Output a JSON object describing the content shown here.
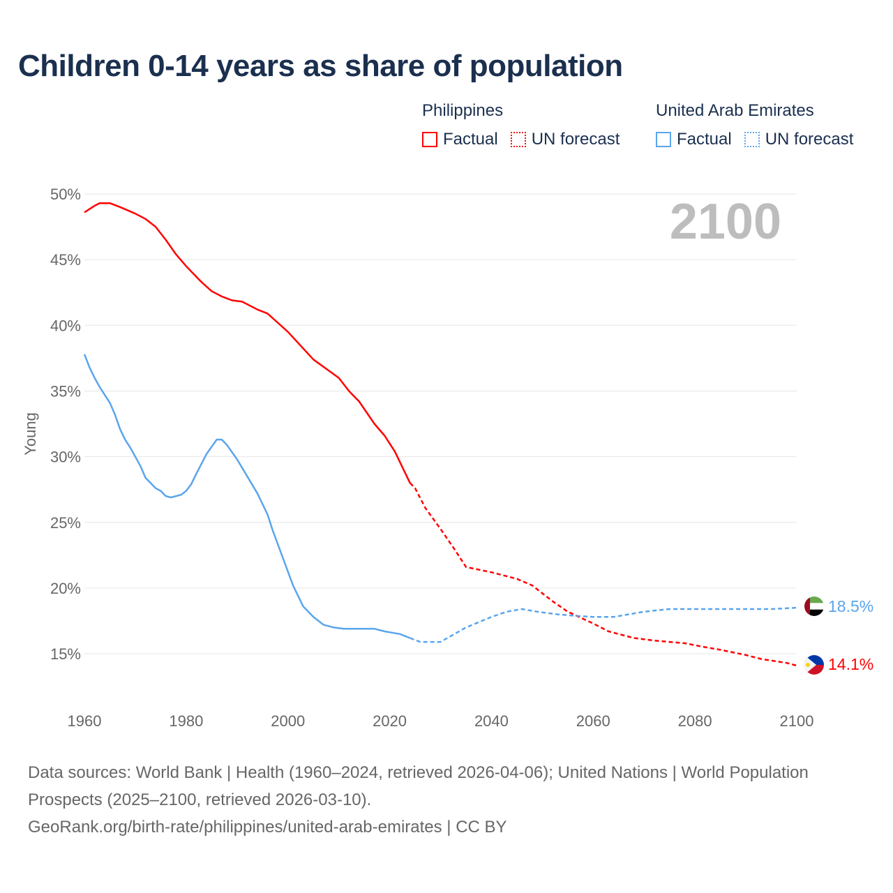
{
  "title": "Children 0-14 years as share of population",
  "legend": {
    "groups": [
      {
        "name": "Philippines",
        "color": "#ff0000",
        "factual": "Factual",
        "forecast": "UN forecast"
      },
      {
        "name": "United Arab Emirates",
        "color": "#5aa5ec",
        "factual": "Factual",
        "forecast": "UN forecast"
      }
    ]
  },
  "year_label": "2100",
  "footer": {
    "line1": "Data sources: World Bank | Health (1960–2024, retrieved 2026-04-06); United Nations | World Population Prospects (2025–2100, retrieved 2026-03-10).",
    "line2": "GeoRank.org/birth-rate/philippines/united-arab-emirates | CC BY"
  },
  "chart_data": {
    "type": "line",
    "title": "Children 0-14 years as share of population",
    "xlabel": "",
    "ylabel": "Young",
    "xlim": [
      1960,
      2100
    ],
    "ylim": [
      12.5,
      50
    ],
    "x_ticks": [
      "1960",
      "1980",
      "2000",
      "2020",
      "2040",
      "2060",
      "2080",
      "2100"
    ],
    "y_ticks": [
      "15%",
      "20%",
      "25%",
      "30%",
      "35%",
      "40%",
      "45%",
      "50%"
    ],
    "grid": true,
    "series": [
      {
        "name": "Philippines",
        "color": "#ff0000",
        "end_label": "14.1%",
        "factual": [
          [
            1960,
            48.6
          ],
          [
            1962,
            49.1
          ],
          [
            1963,
            49.3
          ],
          [
            1965,
            49.3
          ],
          [
            1967,
            49.0
          ],
          [
            1970,
            48.5
          ],
          [
            1972,
            48.1
          ],
          [
            1974,
            47.5
          ],
          [
            1976,
            46.5
          ],
          [
            1978,
            45.4
          ],
          [
            1980,
            44.5
          ],
          [
            1983,
            43.3
          ],
          [
            1985,
            42.6
          ],
          [
            1987,
            42.2
          ],
          [
            1989,
            41.9
          ],
          [
            1991,
            41.8
          ],
          [
            1994,
            41.2
          ],
          [
            1996,
            40.9
          ],
          [
            1998,
            40.2
          ],
          [
            2000,
            39.5
          ],
          [
            2005,
            37.4
          ],
          [
            2010,
            36.0
          ],
          [
            2012,
            35.0
          ],
          [
            2014,
            34.2
          ],
          [
            2017,
            32.5
          ],
          [
            2019,
            31.6
          ],
          [
            2021,
            30.4
          ],
          [
            2024,
            28.0
          ]
        ],
        "forecast": [
          [
            2024,
            28.0
          ],
          [
            2025,
            27.6
          ],
          [
            2027,
            26.1
          ],
          [
            2030,
            24.5
          ],
          [
            2033,
            22.8
          ],
          [
            2035,
            21.6
          ],
          [
            2040,
            21.2
          ],
          [
            2045,
            20.7
          ],
          [
            2048,
            20.2
          ],
          [
            2052,
            19.0
          ],
          [
            2055,
            18.2
          ],
          [
            2060,
            17.3
          ],
          [
            2063,
            16.7
          ],
          [
            2068,
            16.2
          ],
          [
            2072,
            16.0
          ],
          [
            2078,
            15.8
          ],
          [
            2082,
            15.5
          ],
          [
            2085,
            15.3
          ],
          [
            2090,
            14.9
          ],
          [
            2093,
            14.6
          ],
          [
            2098,
            14.3
          ],
          [
            2100,
            14.1
          ]
        ]
      },
      {
        "name": "United Arab Emirates",
        "color": "#5aa5ec",
        "end_label": "18.5%",
        "factual": [
          [
            1960,
            37.8
          ],
          [
            1961,
            36.8
          ],
          [
            1962,
            36.0
          ],
          [
            1963,
            35.3
          ],
          [
            1965,
            34.1
          ],
          [
            1966,
            33.2
          ],
          [
            1967,
            32.1
          ],
          [
            1968,
            31.3
          ],
          [
            1969,
            30.7
          ],
          [
            1971,
            29.3
          ],
          [
            1972,
            28.4
          ],
          [
            1974,
            27.6
          ],
          [
            1975,
            27.4
          ],
          [
            1976,
            27.0
          ],
          [
            1977,
            26.9
          ],
          [
            1979,
            27.1
          ],
          [
            1980,
            27.4
          ],
          [
            1981,
            27.9
          ],
          [
            1982,
            28.7
          ],
          [
            1984,
            30.2
          ],
          [
            1986,
            31.3
          ],
          [
            1987,
            31.3
          ],
          [
            1988,
            30.9
          ],
          [
            1990,
            29.8
          ],
          [
            1992,
            28.5
          ],
          [
            1994,
            27.2
          ],
          [
            1996,
            25.6
          ],
          [
            1997,
            24.4
          ],
          [
            1999,
            22.3
          ],
          [
            2001,
            20.2
          ],
          [
            2003,
            18.6
          ],
          [
            2005,
            17.8
          ],
          [
            2007,
            17.2
          ],
          [
            2009,
            17.0
          ],
          [
            2011,
            16.9
          ],
          [
            2017,
            16.9
          ],
          [
            2019,
            16.7
          ],
          [
            2022,
            16.5
          ],
          [
            2024,
            16.2
          ]
        ],
        "forecast": [
          [
            2024,
            16.2
          ],
          [
            2026,
            15.9
          ],
          [
            2030,
            15.9
          ],
          [
            2035,
            17.0
          ],
          [
            2040,
            17.8
          ],
          [
            2043,
            18.2
          ],
          [
            2046,
            18.4
          ],
          [
            2049,
            18.2
          ],
          [
            2053,
            18.0
          ],
          [
            2056,
            17.9
          ],
          [
            2060,
            17.8
          ],
          [
            2064,
            17.8
          ],
          [
            2070,
            18.2
          ],
          [
            2075,
            18.4
          ],
          [
            2080,
            18.4
          ],
          [
            2085,
            18.4
          ],
          [
            2095,
            18.4
          ],
          [
            2100,
            18.5
          ]
        ]
      }
    ]
  }
}
